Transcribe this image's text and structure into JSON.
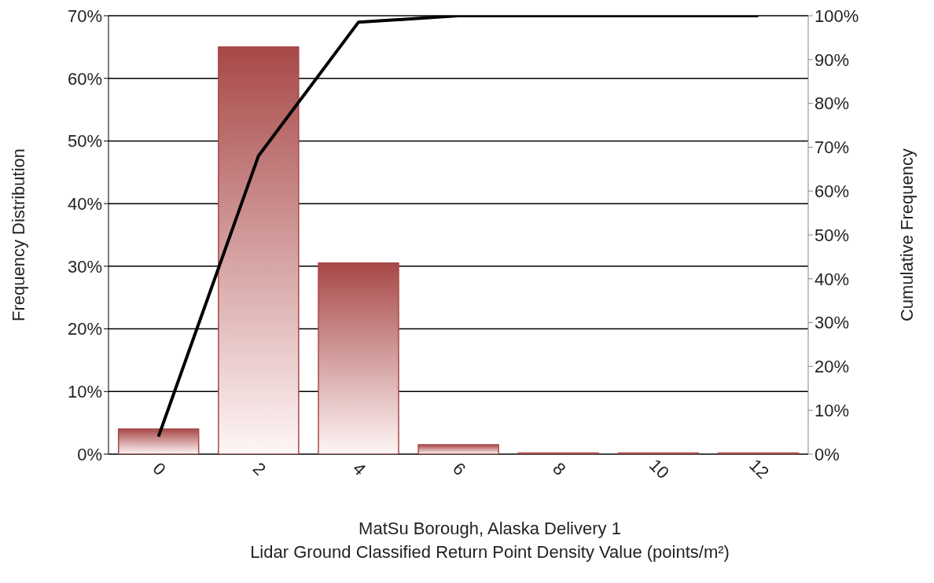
{
  "chart_data": {
    "type": "bar",
    "xlabel": "MatSu Borough, Alaska Delivery 1\nLidar Ground Classified Return Point Density Value (points/m²)",
    "ylabel": "Frequency Distribution",
    "y2label": "Cumulative Frequency",
    "categories": [
      "0",
      "2",
      "4",
      "6",
      "8",
      "10",
      "12"
    ],
    "series": [
      {
        "color": "#a84848",
        "values": [
          4,
          65,
          30.5,
          1.5,
          0.2,
          0.2,
          0.2
        ]
      },
      {
        "type": "line",
        "axis": "y2",
        "color": "#000000",
        "values": [
          4,
          68,
          98.5,
          100,
          100,
          100,
          100
        ]
      }
    ],
    "ylim": [
      0,
      70
    ],
    "yticks": [
      {
        "value": 0,
        "label": "0%"
      },
      {
        "value": 10,
        "label": "10%"
      },
      {
        "value": 20,
        "label": "20%"
      },
      {
        "value": 30,
        "label": "30%"
      },
      {
        "value": 40,
        "label": "40%"
      },
      {
        "value": 50,
        "label": "50%"
      },
      {
        "value": 60,
        "label": "60%"
      },
      {
        "value": 70,
        "label": "70%"
      }
    ],
    "y2lim": [
      0,
      100
    ],
    "y2ticks": [
      {
        "value": 0,
        "label": "0%"
      },
      {
        "value": 10,
        "label": "10%"
      },
      {
        "value": 20,
        "label": "20%"
      },
      {
        "value": 30,
        "label": "30%"
      },
      {
        "value": 40,
        "label": "40%"
      },
      {
        "value": 50,
        "label": "50%"
      },
      {
        "value": 60,
        "label": "60%"
      },
      {
        "value": 70,
        "label": "70%"
      },
      {
        "value": 80,
        "label": "80%"
      },
      {
        "value": 90,
        "label": "90%"
      },
      {
        "value": 100,
        "label": "100%"
      }
    ],
    "grid": "y",
    "legend": false,
    "marker": "none",
    "line_style": "solid"
  }
}
